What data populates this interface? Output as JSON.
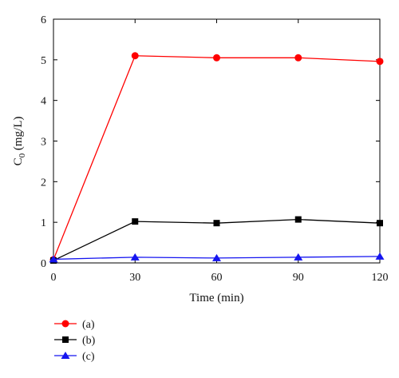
{
  "chart_data": {
    "type": "line",
    "xlabel": "Time (min)",
    "ylabel": "C",
    "ylabel_sub": "0",
    "ylabel_unit": " (mg/L)",
    "xlim": [
      0,
      120
    ],
    "ylim": [
      0,
      6
    ],
    "xticks": [
      0,
      30,
      60,
      90,
      120
    ],
    "yticks": [
      0,
      1,
      2,
      3,
      4,
      5,
      6
    ],
    "x": [
      0,
      30,
      60,
      90,
      120
    ],
    "grid": false,
    "legend_position": "bottom-left",
    "series": [
      {
        "name": "(a)",
        "color": "#ff0000",
        "marker": "circle",
        "values": [
          0.08,
          5.1,
          5.05,
          5.05,
          4.96
        ]
      },
      {
        "name": "(b)",
        "color": "#000000",
        "marker": "square",
        "values": [
          0.06,
          1.02,
          0.98,
          1.07,
          0.98
        ]
      },
      {
        "name": "(c)",
        "color": "#1515f0",
        "marker": "triangle",
        "values": [
          0.09,
          0.14,
          0.12,
          0.14,
          0.16
        ]
      }
    ]
  }
}
